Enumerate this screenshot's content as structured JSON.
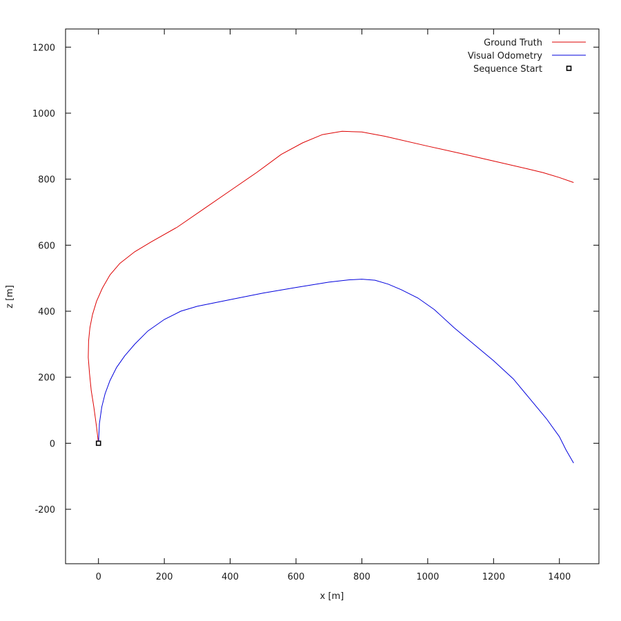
{
  "chart_data": {
    "type": "line",
    "title": "",
    "xlabel": "x [m]",
    "ylabel": "z [m]",
    "xlim": [
      -100,
      1520
    ],
    "ylim": [
      -365,
      1255
    ],
    "xticks": [
      0,
      200,
      400,
      600,
      800,
      1000,
      1200,
      1400
    ],
    "yticks": [
      -200,
      0,
      200,
      400,
      600,
      800,
      1000,
      1200
    ],
    "grid": false,
    "legend_position": "top-right",
    "series": [
      {
        "name": "Ground Truth",
        "color": "#dd0000",
        "x": [
          0,
          -6,
          -14,
          -22,
          -27,
          -31,
          -30,
          -26,
          -18,
          -6,
          12,
          35,
          65,
          110,
          160,
          240,
          320,
          400,
          480,
          555,
          620,
          680,
          740,
          800,
          870,
          1000,
          1100,
          1200,
          1300,
          1350,
          1400,
          1443
        ],
        "y": [
          0,
          50,
          110,
          160,
          210,
          260,
          310,
          350,
          390,
          430,
          470,
          510,
          545,
          580,
          610,
          655,
          710,
          765,
          820,
          875,
          910,
          935,
          945,
          943,
          930,
          900,
          878,
          855,
          832,
          820,
          805,
          790
        ]
      },
      {
        "name": "Visual Odometry",
        "color": "#0000dd",
        "x": [
          0,
          3,
          10,
          20,
          35,
          55,
          80,
          110,
          150,
          200,
          250,
          300,
          400,
          500,
          600,
          700,
          760,
          800,
          840,
          880,
          920,
          970,
          1020,
          1080,
          1140,
          1200,
          1260,
          1310,
          1360,
          1400,
          1420,
          1443
        ],
        "y": [
          0,
          60,
          110,
          150,
          190,
          230,
          265,
          300,
          340,
          375,
          400,
          415,
          435,
          455,
          472,
          488,
          495,
          497,
          494,
          482,
          465,
          440,
          405,
          350,
          300,
          250,
          195,
          135,
          75,
          20,
          -20,
          -60
        ]
      },
      {
        "name": "Sequence Start",
        "color": "#000000",
        "marker": "square",
        "x": [
          0
        ],
        "y": [
          0
        ]
      }
    ]
  }
}
